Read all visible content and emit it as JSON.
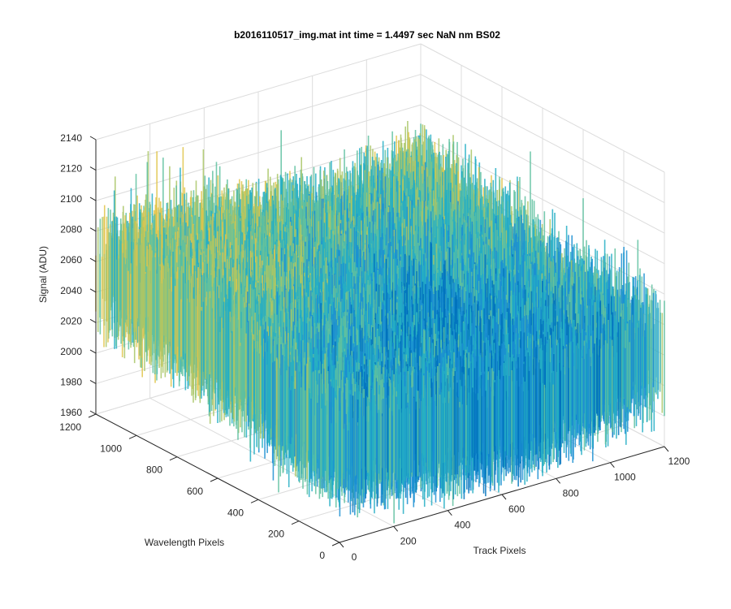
{
  "chart_data": {
    "type": "surface3d",
    "title": "b2016110517_img.mat int time = 1.4497 sec  NaN nm BS02",
    "xlabel": "Track Pixels",
    "ylabel": "Wavelength Pixels",
    "zlabel": "Signal (ADU)",
    "xlim": [
      0,
      1200
    ],
    "ylim": [
      0,
      1200
    ],
    "zlim": [
      1960,
      2140
    ],
    "xticks": [
      "0",
      "200",
      "400",
      "600",
      "800",
      "1000",
      "1200"
    ],
    "yticks": [
      "0",
      "200",
      "400",
      "600",
      "800",
      "1000",
      "1200"
    ],
    "zticks": [
      "1960",
      "1980",
      "2000",
      "2020",
      "2040",
      "2060",
      "2080",
      "2100",
      "2120",
      "2140"
    ],
    "grid": true,
    "colormap": [
      "#0072bd",
      "#1b8fd2",
      "#24aec4",
      "#5fc1a0",
      "#a9c566",
      "#e0c44a"
    ],
    "surface_profile": {
      "y": [
        0,
        200,
        400,
        600,
        800,
        1000,
        1200
      ],
      "x": [
        0,
        200,
        400,
        600,
        800,
        1000,
        1200
      ],
      "z": [
        [
          2018,
          2014,
          2008,
          2004,
          2006,
          2012,
          2020
        ],
        [
          2022,
          2016,
          2008,
          2002,
          2004,
          2012,
          2022
        ],
        [
          2030,
          2022,
          2012,
          2004,
          2004,
          2014,
          2026
        ],
        [
          2040,
          2034,
          2024,
          2012,
          2008,
          2018,
          2032
        ],
        [
          2046,
          2044,
          2036,
          2026,
          2018,
          2026,
          2038
        ],
        [
          2048,
          2048,
          2044,
          2036,
          2030,
          2034,
          2044
        ],
        [
          2050,
          2050,
          2048,
          2042,
          2036,
          2040,
          2048
        ]
      ]
    }
  }
}
